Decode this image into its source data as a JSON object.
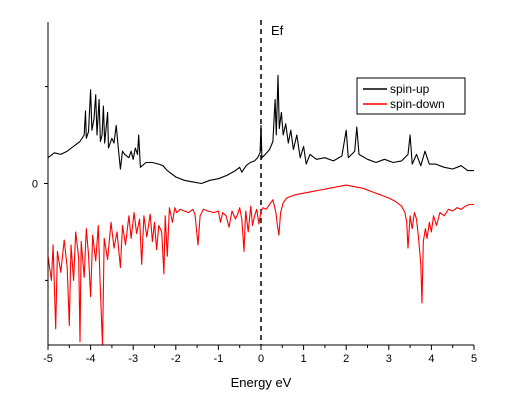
{
  "chart_data": {
    "type": "line",
    "title": "",
    "xlabel": "Energy eV",
    "ylabel": "",
    "xlim": [
      -5,
      5
    ],
    "ylim": [
      -1.0,
      1.0
    ],
    "x_ticks": [
      -5,
      -4,
      -3,
      -2,
      -1,
      0,
      1,
      2,
      3,
      4,
      5
    ],
    "x_tick_labels": [
      "-5",
      "-4",
      "-3",
      "-2",
      "-1",
      "0",
      "1",
      "2",
      "3",
      "4",
      "5"
    ],
    "y_ticks": [
      0
    ],
    "y_tick_labels": [
      "0"
    ],
    "fermi_level": {
      "x": 0,
      "label": "Ef",
      "style": "dashed"
    },
    "legend": {
      "position": "top-right",
      "entries": [
        "spin-up",
        "spin-down"
      ]
    },
    "grid": false,
    "series": [
      {
        "name": "spin-up",
        "color": "#000000",
        "points": [
          [
            -5.0,
            0.16
          ],
          [
            -4.85,
            0.19
          ],
          [
            -4.7,
            0.18
          ],
          [
            -4.55,
            0.2
          ],
          [
            -4.45,
            0.22
          ],
          [
            -4.35,
            0.24
          ],
          [
            -4.25,
            0.26
          ],
          [
            -4.15,
            0.3
          ],
          [
            -4.12,
            0.45
          ],
          [
            -4.1,
            0.28
          ],
          [
            -4.05,
            0.32
          ],
          [
            -4.0,
            0.58
          ],
          [
            -3.97,
            0.33
          ],
          [
            -3.92,
            0.4
          ],
          [
            -3.88,
            0.55
          ],
          [
            -3.85,
            0.3
          ],
          [
            -3.8,
            0.52
          ],
          [
            -3.77,
            0.26
          ],
          [
            -3.73,
            0.3
          ],
          [
            -3.7,
            0.48
          ],
          [
            -3.67,
            0.25
          ],
          [
            -3.6,
            0.44
          ],
          [
            -3.58,
            0.22
          ],
          [
            -3.5,
            0.28
          ],
          [
            -3.45,
            0.25
          ],
          [
            -3.4,
            0.36
          ],
          [
            -3.35,
            0.22
          ],
          [
            -3.3,
            0.09
          ],
          [
            -3.25,
            0.2
          ],
          [
            -3.2,
            0.18
          ],
          [
            -3.1,
            0.16
          ],
          [
            -3.05,
            0.2
          ],
          [
            -3.0,
            0.15
          ],
          [
            -2.95,
            0.22
          ],
          [
            -2.9,
            0.18
          ],
          [
            -2.87,
            0.3
          ],
          [
            -2.83,
            0.1
          ],
          [
            -2.7,
            0.13
          ],
          [
            -2.55,
            0.13
          ],
          [
            -2.4,
            0.12
          ],
          [
            -2.3,
            0.11
          ],
          [
            -2.2,
            0.08
          ],
          [
            -2.0,
            0.04
          ],
          [
            -1.8,
            0.02
          ],
          [
            -1.6,
            0.01
          ],
          [
            -1.4,
            0.0
          ],
          [
            -1.2,
            0.02
          ],
          [
            -1.0,
            0.03
          ],
          [
            -0.8,
            0.05
          ],
          [
            -0.6,
            0.08
          ],
          [
            -0.5,
            0.1
          ],
          [
            -0.45,
            0.07
          ],
          [
            -0.35,
            0.11
          ],
          [
            -0.25,
            0.13
          ],
          [
            -0.15,
            0.14
          ],
          [
            -0.08,
            0.16
          ],
          [
            -0.02,
            0.19
          ],
          [
            0.0,
            0.36
          ],
          [
            0.02,
            0.16
          ],
          [
            0.1,
            0.18
          ],
          [
            0.2,
            0.21
          ],
          [
            0.28,
            0.26
          ],
          [
            0.33,
            0.52
          ],
          [
            0.36,
            0.3
          ],
          [
            0.4,
            0.67
          ],
          [
            0.43,
            0.34
          ],
          [
            0.48,
            0.44
          ],
          [
            0.52,
            0.3
          ],
          [
            0.58,
            0.37
          ],
          [
            0.64,
            0.25
          ],
          [
            0.7,
            0.33
          ],
          [
            0.76,
            0.21
          ],
          [
            0.84,
            0.3
          ],
          [
            0.92,
            0.16
          ],
          [
            1.0,
            0.23
          ],
          [
            1.06,
            0.12
          ],
          [
            1.15,
            0.18
          ],
          [
            1.3,
            0.15
          ],
          [
            1.5,
            0.16
          ],
          [
            1.7,
            0.14
          ],
          [
            1.9,
            0.17
          ],
          [
            2.0,
            0.33
          ],
          [
            2.05,
            0.16
          ],
          [
            2.2,
            0.2
          ],
          [
            2.25,
            0.35
          ],
          [
            2.3,
            0.18
          ],
          [
            2.5,
            0.15
          ],
          [
            2.7,
            0.13
          ],
          [
            2.9,
            0.15
          ],
          [
            3.1,
            0.13
          ],
          [
            3.3,
            0.14
          ],
          [
            3.45,
            0.18
          ],
          [
            3.5,
            0.3
          ],
          [
            3.55,
            0.12
          ],
          [
            3.65,
            0.18
          ],
          [
            3.75,
            0.11
          ],
          [
            3.85,
            0.2
          ],
          [
            3.95,
            0.12
          ],
          [
            4.1,
            0.12
          ],
          [
            4.3,
            0.1
          ],
          [
            4.5,
            0.09
          ],
          [
            4.7,
            0.11
          ],
          [
            4.85,
            0.08
          ],
          [
            5.0,
            0.08
          ]
        ]
      },
      {
        "name": "spin-down",
        "color": "#ff0000",
        "points": [
          [
            -5.0,
            -0.45
          ],
          [
            -4.92,
            -0.6
          ],
          [
            -4.88,
            -0.38
          ],
          [
            -4.82,
            -0.9
          ],
          [
            -4.78,
            -0.42
          ],
          [
            -4.7,
            -0.55
          ],
          [
            -4.62,
            -0.35
          ],
          [
            -4.55,
            -0.52
          ],
          [
            -4.5,
            -0.88
          ],
          [
            -4.46,
            -0.38
          ],
          [
            -4.4,
            -0.6
          ],
          [
            -4.35,
            -0.3
          ],
          [
            -4.28,
            -0.46
          ],
          [
            -4.25,
            -0.98
          ],
          [
            -4.22,
            -0.36
          ],
          [
            -4.15,
            -0.58
          ],
          [
            -4.1,
            -0.28
          ],
          [
            -4.05,
            -0.44
          ],
          [
            -4.0,
            -0.7
          ],
          [
            -3.95,
            -0.32
          ],
          [
            -3.88,
            -0.48
          ],
          [
            -3.82,
            -0.26
          ],
          [
            -3.78,
            -0.6
          ],
          [
            -3.72,
            -1.0
          ],
          [
            -3.68,
            -0.34
          ],
          [
            -3.6,
            -0.47
          ],
          [
            -3.52,
            -0.24
          ],
          [
            -3.45,
            -0.4
          ],
          [
            -3.38,
            -0.3
          ],
          [
            -3.3,
            -0.52
          ],
          [
            -3.25,
            -0.26
          ],
          [
            -3.18,
            -0.38
          ],
          [
            -3.1,
            -0.2
          ],
          [
            -3.05,
            -0.34
          ],
          [
            -2.98,
            -0.18
          ],
          [
            -2.92,
            -0.31
          ],
          [
            -2.85,
            -0.22
          ],
          [
            -2.8,
            -0.5
          ],
          [
            -2.75,
            -0.2
          ],
          [
            -2.68,
            -0.33
          ],
          [
            -2.6,
            -0.19
          ],
          [
            -2.55,
            -0.36
          ],
          [
            -2.5,
            -0.24
          ],
          [
            -2.45,
            -0.41
          ],
          [
            -2.4,
            -0.26
          ],
          [
            -2.33,
            -0.3
          ],
          [
            -2.28,
            -0.56
          ],
          [
            -2.25,
            -0.2
          ],
          [
            -2.2,
            -0.45
          ],
          [
            -2.15,
            -0.15
          ],
          [
            -2.08,
            -0.24
          ],
          [
            -2.02,
            -0.15
          ],
          [
            -1.98,
            -0.18
          ],
          [
            -1.9,
            -0.16
          ],
          [
            -1.8,
            -0.17
          ],
          [
            -1.7,
            -0.18
          ],
          [
            -1.6,
            -0.16
          ],
          [
            -1.55,
            -0.19
          ],
          [
            -1.48,
            -0.38
          ],
          [
            -1.43,
            -0.2
          ],
          [
            -1.35,
            -0.16
          ],
          [
            -1.25,
            -0.17
          ],
          [
            -1.1,
            -0.18
          ],
          [
            -1.0,
            -0.17
          ],
          [
            -0.95,
            -0.24
          ],
          [
            -0.9,
            -0.18
          ],
          [
            -0.82,
            -0.2
          ],
          [
            -0.75,
            -0.27
          ],
          [
            -0.68,
            -0.17
          ],
          [
            -0.6,
            -0.22
          ],
          [
            -0.55,
            -0.19
          ],
          [
            -0.5,
            -0.15
          ],
          [
            -0.45,
            -0.22
          ],
          [
            -0.4,
            -0.42
          ],
          [
            -0.36,
            -0.17
          ],
          [
            -0.3,
            -0.3
          ],
          [
            -0.24,
            -0.14
          ],
          [
            -0.2,
            -0.26
          ],
          [
            -0.15,
            -0.2
          ],
          [
            -0.1,
            -0.16
          ],
          [
            -0.05,
            -0.25
          ],
          [
            0.0,
            -0.17
          ],
          [
            0.05,
            -0.15
          ],
          [
            0.12,
            -0.16
          ],
          [
            0.2,
            -0.13
          ],
          [
            0.28,
            -0.1
          ],
          [
            0.35,
            -0.18
          ],
          [
            0.38,
            -0.25
          ],
          [
            0.42,
            -0.32
          ],
          [
            0.46,
            -0.18
          ],
          [
            0.52,
            -0.12
          ],
          [
            0.6,
            -0.09
          ],
          [
            0.7,
            -0.08
          ],
          [
            0.8,
            -0.07
          ],
          [
            1.0,
            -0.06
          ],
          [
            1.2,
            -0.05
          ],
          [
            1.4,
            -0.04
          ],
          [
            1.6,
            -0.03
          ],
          [
            1.8,
            -0.02
          ],
          [
            2.0,
            -0.01
          ],
          [
            2.2,
            -0.02
          ],
          [
            2.4,
            -0.03
          ],
          [
            2.6,
            -0.05
          ],
          [
            2.8,
            -0.07
          ],
          [
            3.0,
            -0.09
          ],
          [
            3.15,
            -0.11
          ],
          [
            3.3,
            -0.14
          ],
          [
            3.38,
            -0.18
          ],
          [
            3.42,
            -0.24
          ],
          [
            3.45,
            -0.4
          ],
          [
            3.5,
            -0.2
          ],
          [
            3.55,
            -0.28
          ],
          [
            3.6,
            -0.18
          ],
          [
            3.65,
            -0.22
          ],
          [
            3.7,
            -0.34
          ],
          [
            3.75,
            -0.5
          ],
          [
            3.78,
            -0.74
          ],
          [
            3.81,
            -0.36
          ],
          [
            3.86,
            -0.28
          ],
          [
            3.9,
            -0.34
          ],
          [
            3.95,
            -0.24
          ],
          [
            4.0,
            -0.3
          ],
          [
            4.05,
            -0.2
          ],
          [
            4.12,
            -0.26
          ],
          [
            4.2,
            -0.18
          ],
          [
            4.3,
            -0.2
          ],
          [
            4.4,
            -0.16
          ],
          [
            4.5,
            -0.17
          ],
          [
            4.6,
            -0.15
          ],
          [
            4.7,
            -0.16
          ],
          [
            4.8,
            -0.14
          ],
          [
            4.9,
            -0.13
          ],
          [
            5.0,
            -0.13
          ]
        ]
      }
    ]
  }
}
